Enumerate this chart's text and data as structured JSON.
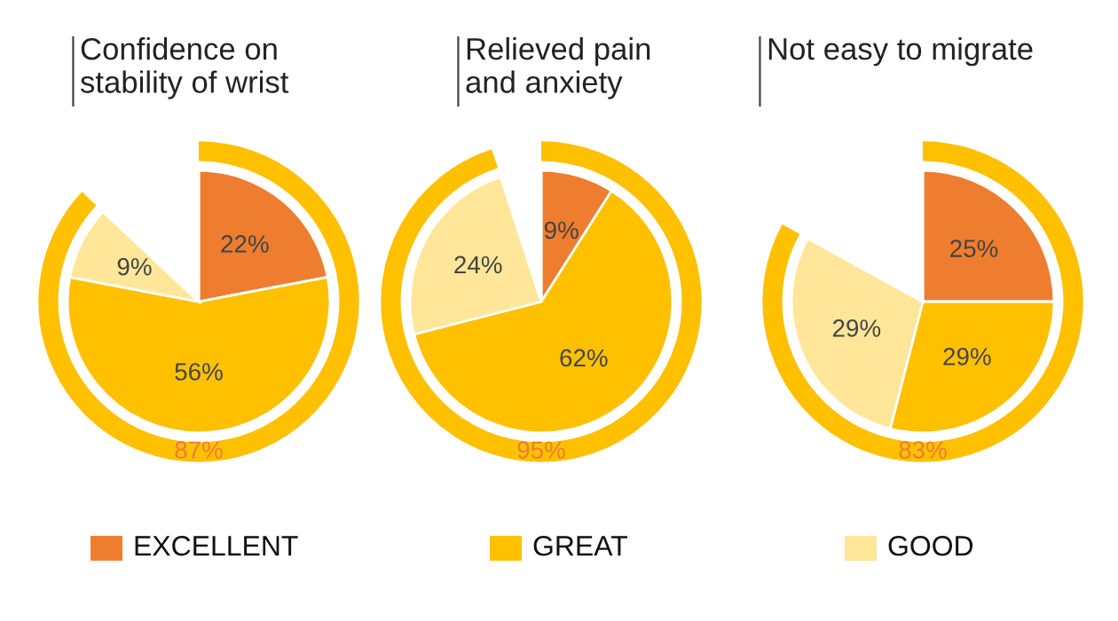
{
  "chart_data": [
    {
      "type": "pie",
      "title": "Confidence on\nstability of wrist",
      "categories": [
        "EXCELLENT",
        "GREAT",
        "GOOD",
        null
      ],
      "values": [
        22,
        56,
        9,
        13
      ],
      "colors": [
        "#ee7d30",
        "#ffc000",
        "#ffe699",
        "#ffffff"
      ],
      "value_labels": [
        "22%",
        "56%",
        "9%",
        null
      ],
      "annotations": [
        "87%"
      ],
      "legend": "bottom"
    },
    {
      "type": "pie",
      "title": "Relieved pain\nand anxiety",
      "categories": [
        null,
        null,
        null,
        null
      ],
      "values": [
        9,
        62,
        24,
        5
      ],
      "colors": [
        "#ee7d30",
        "#ffc000",
        "#ffe699",
        "#ffffff"
      ],
      "value_labels": [
        "9%",
        "62%",
        "24%",
        null
      ],
      "annotations": [
        "95%"
      ]
    },
    {
      "type": "pie",
      "title": "Not easy to migrate",
      "categories": [
        null,
        null,
        null,
        null
      ],
      "values": [
        25,
        29,
        29,
        17
      ],
      "colors": [
        "#ee7d30",
        "#ffc000",
        "#ffe699",
        "#ffffff"
      ],
      "value_labels": [
        "25%",
        "29%",
        "29%",
        null
      ],
      "annotations": [
        "83%"
      ]
    }
  ]
}
